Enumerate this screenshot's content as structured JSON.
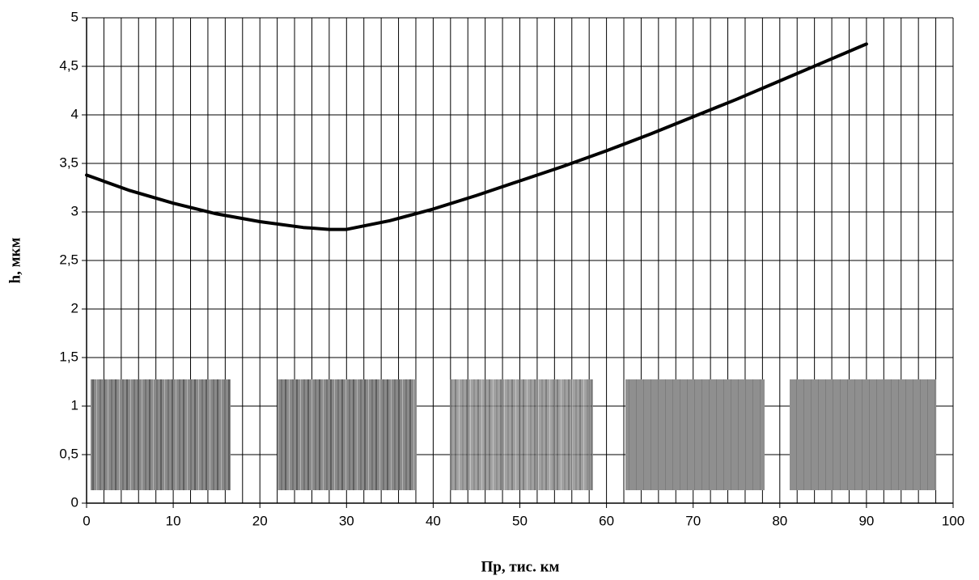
{
  "chart_data": {
    "type": "line",
    "x_label": "Пр, тис. км",
    "y_label": "h, мкм",
    "x": [
      0,
      5,
      10,
      15,
      20,
      25,
      28,
      30,
      35,
      40,
      45,
      50,
      55,
      60,
      65,
      70,
      75,
      80,
      85,
      90
    ],
    "series": [
      {
        "color": "#000000",
        "values": [
          3.38,
          3.22,
          3.09,
          2.98,
          2.9,
          2.84,
          2.82,
          2.82,
          2.91,
          3.03,
          3.17,
          3.32,
          3.47,
          3.63,
          3.8,
          3.98,
          4.16,
          4.35,
          4.54,
          4.73
        ]
      }
    ],
    "xlim": [
      0,
      100
    ],
    "xticks": [
      0,
      10,
      20,
      30,
      40,
      50,
      60,
      70,
      80,
      90,
      100
    ],
    "x_minor_divisions": 5,
    "ylim": [
      0,
      5
    ],
    "yticks": [
      0,
      {
        "value": 0.5,
        "label": "0,5"
      },
      1,
      {
        "value": 1.5,
        "label": "1,5"
      },
      2,
      {
        "value": 2.5,
        "label": "2,5"
      },
      3,
      {
        "value": 3.5,
        "label": "3,5"
      },
      4,
      {
        "value": 4.5,
        "label": "4,5"
      },
      5
    ],
    "grid": true
  }
}
